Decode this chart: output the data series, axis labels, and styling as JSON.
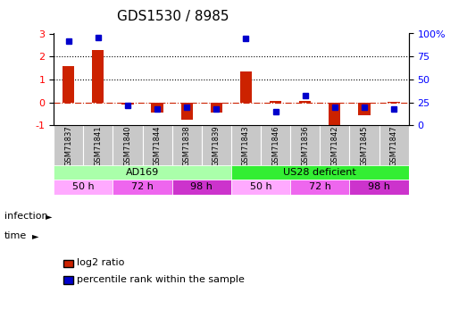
{
  "title": "GDS1530 / 8985",
  "samples": [
    "GSM71837",
    "GSM71841",
    "GSM71840",
    "GSM71844",
    "GSM71838",
    "GSM71839",
    "GSM71843",
    "GSM71846",
    "GSM71836",
    "GSM71842",
    "GSM71845",
    "GSM71847"
  ],
  "log2_ratio": [
    1.6,
    2.3,
    -0.1,
    -0.45,
    -0.75,
    -0.45,
    1.35,
    0.05,
    0.05,
    -1.0,
    -0.55,
    0.02
  ],
  "percentile_rank": [
    92,
    96,
    22,
    18,
    20,
    18,
    95,
    15,
    32,
    20,
    20,
    18
  ],
  "infection_groups": [
    {
      "label": "AD169",
      "start": 0,
      "end": 6,
      "color": "#AAFFAA"
    },
    {
      "label": "US28 deficient",
      "start": 6,
      "end": 12,
      "color": "#33EE33"
    }
  ],
  "time_groups": [
    {
      "label": "50 h",
      "start": 0,
      "end": 2,
      "color": "#FFAAFF"
    },
    {
      "label": "72 h",
      "start": 2,
      "end": 4,
      "color": "#EE66EE"
    },
    {
      "label": "98 h",
      "start": 4,
      "end": 6,
      "color": "#CC33CC"
    },
    {
      "label": "50 h",
      "start": 6,
      "end": 8,
      "color": "#FFAAFF"
    },
    {
      "label": "72 h",
      "start": 8,
      "end": 10,
      "color": "#EE66EE"
    },
    {
      "label": "98 h",
      "start": 10,
      "end": 12,
      "color": "#CC33CC"
    }
  ],
  "bar_color": "#CC2200",
  "dot_color": "#0000CC",
  "ylim_left": [
    -1,
    3
  ],
  "ylim_right": [
    0,
    100
  ],
  "yticks_left": [
    -1,
    0,
    1,
    2,
    3
  ],
  "yticks_right": [
    0,
    25,
    50,
    75,
    100
  ],
  "hlines": [
    0,
    1,
    2
  ],
  "hline_styles": [
    "dashdot",
    "dotted",
    "dotted"
  ],
  "hline_colors": [
    "#CC2200",
    "black",
    "black"
  ],
  "legend_labels": [
    "log2 ratio",
    "percentile rank within the sample"
  ],
  "legend_colors": [
    "#CC2200",
    "#0000CC"
  ],
  "bar_width": 0.4,
  "dot_size": 5
}
